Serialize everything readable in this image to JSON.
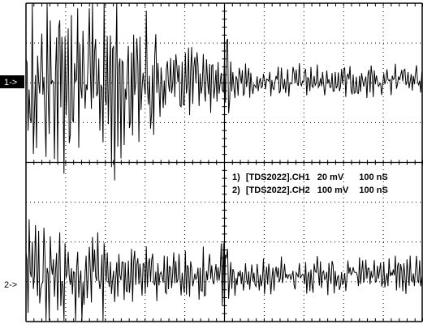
{
  "scope": {
    "grid": {
      "divisions_x": 10,
      "divisions_y": 8,
      "minor_per_division": 5
    },
    "markers": [
      {
        "label": "1->",
        "style": "inverted"
      },
      {
        "label": "2->",
        "style": "plain"
      }
    ],
    "legend": [
      {
        "index": "1)",
        "source": "[TDS2022].CH1",
        "volts": "20 mV",
        "time": "100 nS"
      },
      {
        "index": "2)",
        "source": "[TDS2022].CH2",
        "volts": "100 mV",
        "time": "100 nS"
      }
    ],
    "colors": {
      "trace": "#000000",
      "grid": "#000000",
      "background": "#ffffff",
      "marker_bg": "#000000",
      "marker_fg": "#ffffff"
    }
  }
}
